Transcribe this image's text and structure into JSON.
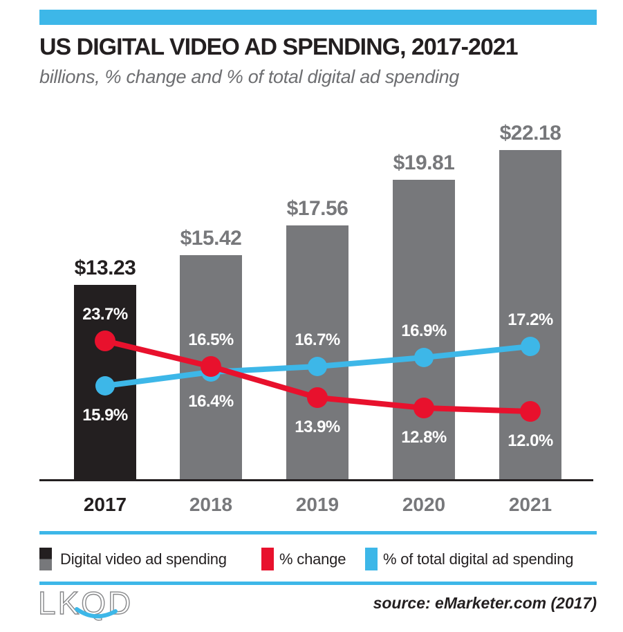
{
  "header": {
    "title": "US DIGITAL VIDEO AD SPENDING, 2017-2021",
    "subtitle": "billions, % change and % of total digital ad spending"
  },
  "colors": {
    "accent_blue": "#3db7e8",
    "red": "#e8112d",
    "dark": "#231f20",
    "gray": "#77787b",
    "subtitle_gray": "#6d6e71",
    "label_white": "#ffffff"
  },
  "chart_data": {
    "type": "bar",
    "subtype": "bar with two overlaid line series",
    "categories": [
      "2017",
      "2018",
      "2019",
      "2020",
      "2021"
    ],
    "series": [
      {
        "name": "Digital video ad spending",
        "type": "bar",
        "unit": "USD billions",
        "values": [
          13.23,
          15.42,
          17.56,
          19.81,
          22.18
        ],
        "labels": [
          "$13.23",
          "$15.42",
          "$17.56",
          "$19.81",
          "$22.18"
        ]
      },
      {
        "name": "% change",
        "type": "line",
        "unit": "percent",
        "values": [
          23.7,
          16.5,
          13.9,
          12.8,
          12.0
        ],
        "labels": [
          "23.7%",
          "16.5%",
          "13.9%",
          "12.8%",
          "12.0%"
        ]
      },
      {
        "name": "% of total digital ad spending",
        "type": "line",
        "unit": "percent",
        "values": [
          15.9,
          16.4,
          16.7,
          16.9,
          17.2
        ],
        "labels": [
          "15.9%",
          "16.4%",
          "16.7%",
          "16.9%",
          "17.2%"
        ]
      }
    ],
    "title": "US DIGITAL VIDEO AD SPENDING, 2017-2021",
    "xlabel": "",
    "ylabel": "",
    "ylim_bars": [
      0,
      25
    ],
    "grid": false,
    "legend_position": "bottom"
  },
  "legend": {
    "items": [
      {
        "label": "Digital video ad spending",
        "swatch": "black-over-gray"
      },
      {
        "label": "% change",
        "swatch": "red"
      },
      {
        "label": "% of total digital ad spending",
        "swatch": "blue"
      }
    ]
  },
  "footer": {
    "logo_text": "LKQD",
    "source": "source: eMarketer.com (2017)"
  }
}
